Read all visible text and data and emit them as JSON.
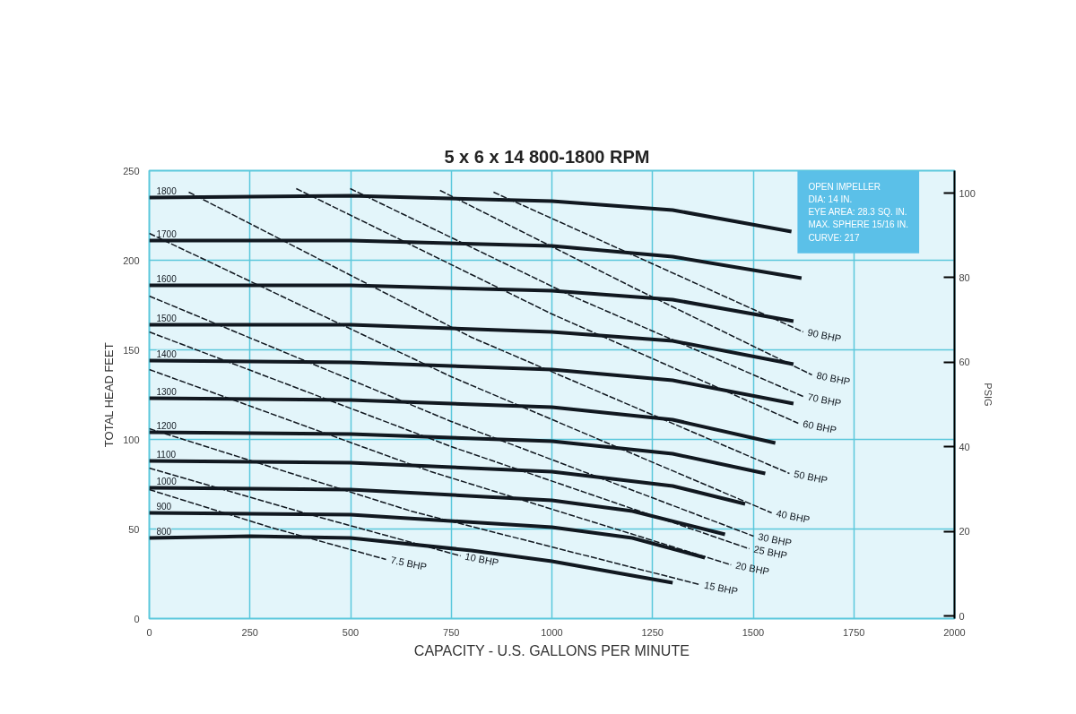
{
  "chart_data": {
    "type": "line",
    "title": "5 x 6 x 14   800-1800 RPM",
    "xlabel": "CAPACITY - U.S. GALLONS PER MINUTE",
    "ylabel": "TOTAL HEAD FEET",
    "y2label": "PSIG",
    "xlim": [
      0,
      2000
    ],
    "xticks": [
      0,
      250,
      500,
      750,
      1000,
      1250,
      1500,
      1750,
      2000
    ],
    "ylim": [
      0,
      250
    ],
    "yticks": [
      0,
      50,
      100,
      150,
      200,
      250
    ],
    "y2lim": [
      -0.6,
      105.3
    ],
    "y2ticks": [
      0,
      20,
      40,
      60,
      80,
      100
    ],
    "grid": true,
    "marker": "none",
    "annotations": [
      "OPEN IMPELLER",
      "DIA: 14 IN.",
      "EYE AREA: 28.3 SQ. IN.",
      "MAX. SPHERE 15/16 IN.",
      "CURVE: 217"
    ],
    "series": [
      {
        "name": "1800",
        "color": "#111820",
        "line_style": "solid",
        "x": [
          0,
          500,
          1000,
          1300,
          1595
        ],
        "values": [
          235,
          236,
          233,
          228,
          216
        ]
      },
      {
        "name": "1700",
        "color": "#111820",
        "line_style": "solid",
        "x": [
          0,
          500,
          1000,
          1300,
          1620
        ],
        "values": [
          211,
          211,
          208,
          202,
          190
        ]
      },
      {
        "name": "1600",
        "color": "#111820",
        "line_style": "solid",
        "x": [
          0,
          500,
          1000,
          1300,
          1600
        ],
        "values": [
          186,
          186,
          183,
          178,
          166
        ]
      },
      {
        "name": "1500",
        "color": "#111820",
        "line_style": "solid",
        "x": [
          0,
          500,
          1000,
          1300,
          1600
        ],
        "values": [
          164,
          164,
          160,
          155,
          142
        ]
      },
      {
        "name": "1400",
        "color": "#111820",
        "line_style": "solid",
        "x": [
          0,
          500,
          1000,
          1300,
          1600
        ],
        "values": [
          144,
          143,
          139,
          133,
          120
        ]
      },
      {
        "name": "1300",
        "color": "#111820",
        "line_style": "solid",
        "x": [
          0,
          500,
          1000,
          1300,
          1555
        ],
        "values": [
          123,
          122,
          118,
          111,
          98
        ]
      },
      {
        "name": "1200",
        "color": "#111820",
        "line_style": "solid",
        "x": [
          0,
          500,
          1000,
          1300,
          1530
        ],
        "values": [
          104,
          103,
          99,
          92,
          81
        ]
      },
      {
        "name": "1100",
        "color": "#111820",
        "line_style": "solid",
        "x": [
          0,
          500,
          1000,
          1300,
          1480
        ],
        "values": [
          88,
          87,
          82,
          74,
          64
        ]
      },
      {
        "name": "1000",
        "color": "#111820",
        "line_style": "solid",
        "x": [
          0,
          500,
          1000,
          1200,
          1430
        ],
        "values": [
          73,
          72,
          66,
          60,
          47
        ]
      },
      {
        "name": "900",
        "color": "#111820",
        "line_style": "solid",
        "x": [
          0,
          500,
          1000,
          1200,
          1380
        ],
        "values": [
          59,
          58,
          51,
          45,
          34
        ]
      },
      {
        "name": "800",
        "color": "#111820",
        "line_style": "solid",
        "x": [
          0,
          250,
          500,
          800,
          1000,
          1300
        ],
        "values": [
          45,
          46,
          45,
          38,
          32,
          20
        ]
      },
      {
        "name": "90 BHP",
        "color": "#111820",
        "line_style": "dashed",
        "x": [
          855,
          1250,
          1624
        ],
        "values": [
          238,
          198,
          160
        ]
      },
      {
        "name": "80 BHP",
        "color": "#111820",
        "line_style": "dashed",
        "x": [
          722,
          1200,
          1646
        ],
        "values": [
          239,
          185,
          136
        ]
      },
      {
        "name": "70 BHP",
        "color": "#111820",
        "line_style": "dashed",
        "x": [
          499,
          1050,
          1624
        ],
        "values": [
          240,
          180,
          124
        ]
      },
      {
        "name": "60 BHP",
        "color": "#111820",
        "line_style": "dashed",
        "x": [
          365,
          1000,
          1612
        ],
        "values": [
          240,
          170,
          109
        ]
      },
      {
        "name": "50 BHP",
        "color": "#111820",
        "line_style": "dashed",
        "x": [
          98,
          800,
          1590
        ],
        "values": [
          238,
          157,
          81
        ]
      },
      {
        "name": "40 BHP",
        "color": "#111820",
        "line_style": "dashed",
        "x": [
          0,
          750,
          1546
        ],
        "values": [
          215,
          135,
          59
        ]
      },
      {
        "name": "30 BHP",
        "color": "#111820",
        "line_style": "dashed",
        "x": [
          0,
          750,
          1501
        ],
        "values": [
          180,
          110,
          46
        ]
      },
      {
        "name": "25 BHP",
        "color": "#111820",
        "line_style": "dashed",
        "x": [
          0,
          750,
          1490
        ],
        "values": [
          160,
          96,
          39
        ]
      },
      {
        "name": "20 BHP",
        "color": "#111820",
        "line_style": "dashed",
        "x": [
          0,
          700,
          1445
        ],
        "values": [
          139,
          82,
          30
        ]
      },
      {
        "name": "15 BHP",
        "color": "#111820",
        "line_style": "dashed",
        "x": [
          0,
          650,
          1367
        ],
        "values": [
          106,
          60,
          19
        ]
      },
      {
        "name": "10 BHP",
        "color": "#111820",
        "line_style": "dashed",
        "x": [
          0,
          400,
          773
        ],
        "values": [
          84,
          58,
          35
        ]
      },
      {
        "name": "7.5 BHP",
        "color": "#111820",
        "line_style": "dashed",
        "x": [
          0,
          300,
          588
        ],
        "values": [
          72,
          51,
          33
        ]
      }
    ]
  }
}
